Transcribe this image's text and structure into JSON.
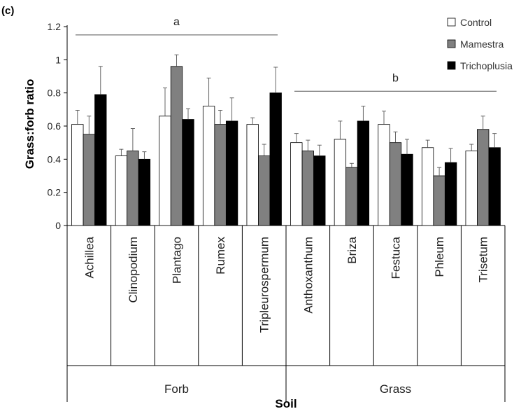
{
  "chart_data": {
    "type": "bar",
    "panel_label": "(c)",
    "ylabel": "Grass:forb ratio",
    "xlabel": "Soil",
    "ylim": [
      0,
      1.2
    ],
    "yticks": [
      "0",
      "0.2",
      "0.4",
      "0.6",
      "0.8",
      "1",
      "1.2"
    ],
    "categories": [
      "Achillea",
      "Clinopodium",
      "Plantago",
      "Rumex",
      "Tripleurospermum",
      "Anthoxanthum",
      "Briza",
      "Festuca",
      "Phleum",
      "Trisetum"
    ],
    "groups": [
      {
        "label": "Forb",
        "from": 0,
        "to": 4
      },
      {
        "label": "Grass",
        "from": 5,
        "to": 9
      }
    ],
    "series": [
      {
        "name": "Control",
        "color": "#ffffff",
        "values": [
          0.61,
          0.42,
          0.66,
          0.72,
          0.61,
          0.5,
          0.52,
          0.61,
          0.47,
          0.45
        ],
        "errors": [
          0.085,
          0.04,
          0.17,
          0.17,
          0.04,
          0.055,
          0.11,
          0.08,
          0.045,
          0.04
        ]
      },
      {
        "name": "Mamestra",
        "color": "#808080",
        "values": [
          0.55,
          0.45,
          0.96,
          0.61,
          0.42,
          0.45,
          0.35,
          0.5,
          0.3,
          0.58
        ],
        "errors": [
          0.11,
          0.135,
          0.07,
          0.085,
          0.07,
          0.065,
          0.025,
          0.065,
          0.05,
          0.08
        ]
      },
      {
        "name": "Trichoplusia",
        "color": "#000000",
        "values": [
          0.79,
          0.4,
          0.64,
          0.63,
          0.8,
          0.42,
          0.63,
          0.43,
          0.38,
          0.47
        ],
        "errors": [
          0.17,
          0.045,
          0.065,
          0.14,
          0.155,
          0.065,
          0.09,
          0.09,
          0.085,
          0.085
        ]
      }
    ],
    "significance": [
      {
        "label": "a",
        "from": 0,
        "to": 4,
        "y": 1.15
      },
      {
        "label": "b",
        "from": 5,
        "to": 9,
        "y": 0.81
      }
    ],
    "legend_position": "top-right",
    "grid": false
  }
}
